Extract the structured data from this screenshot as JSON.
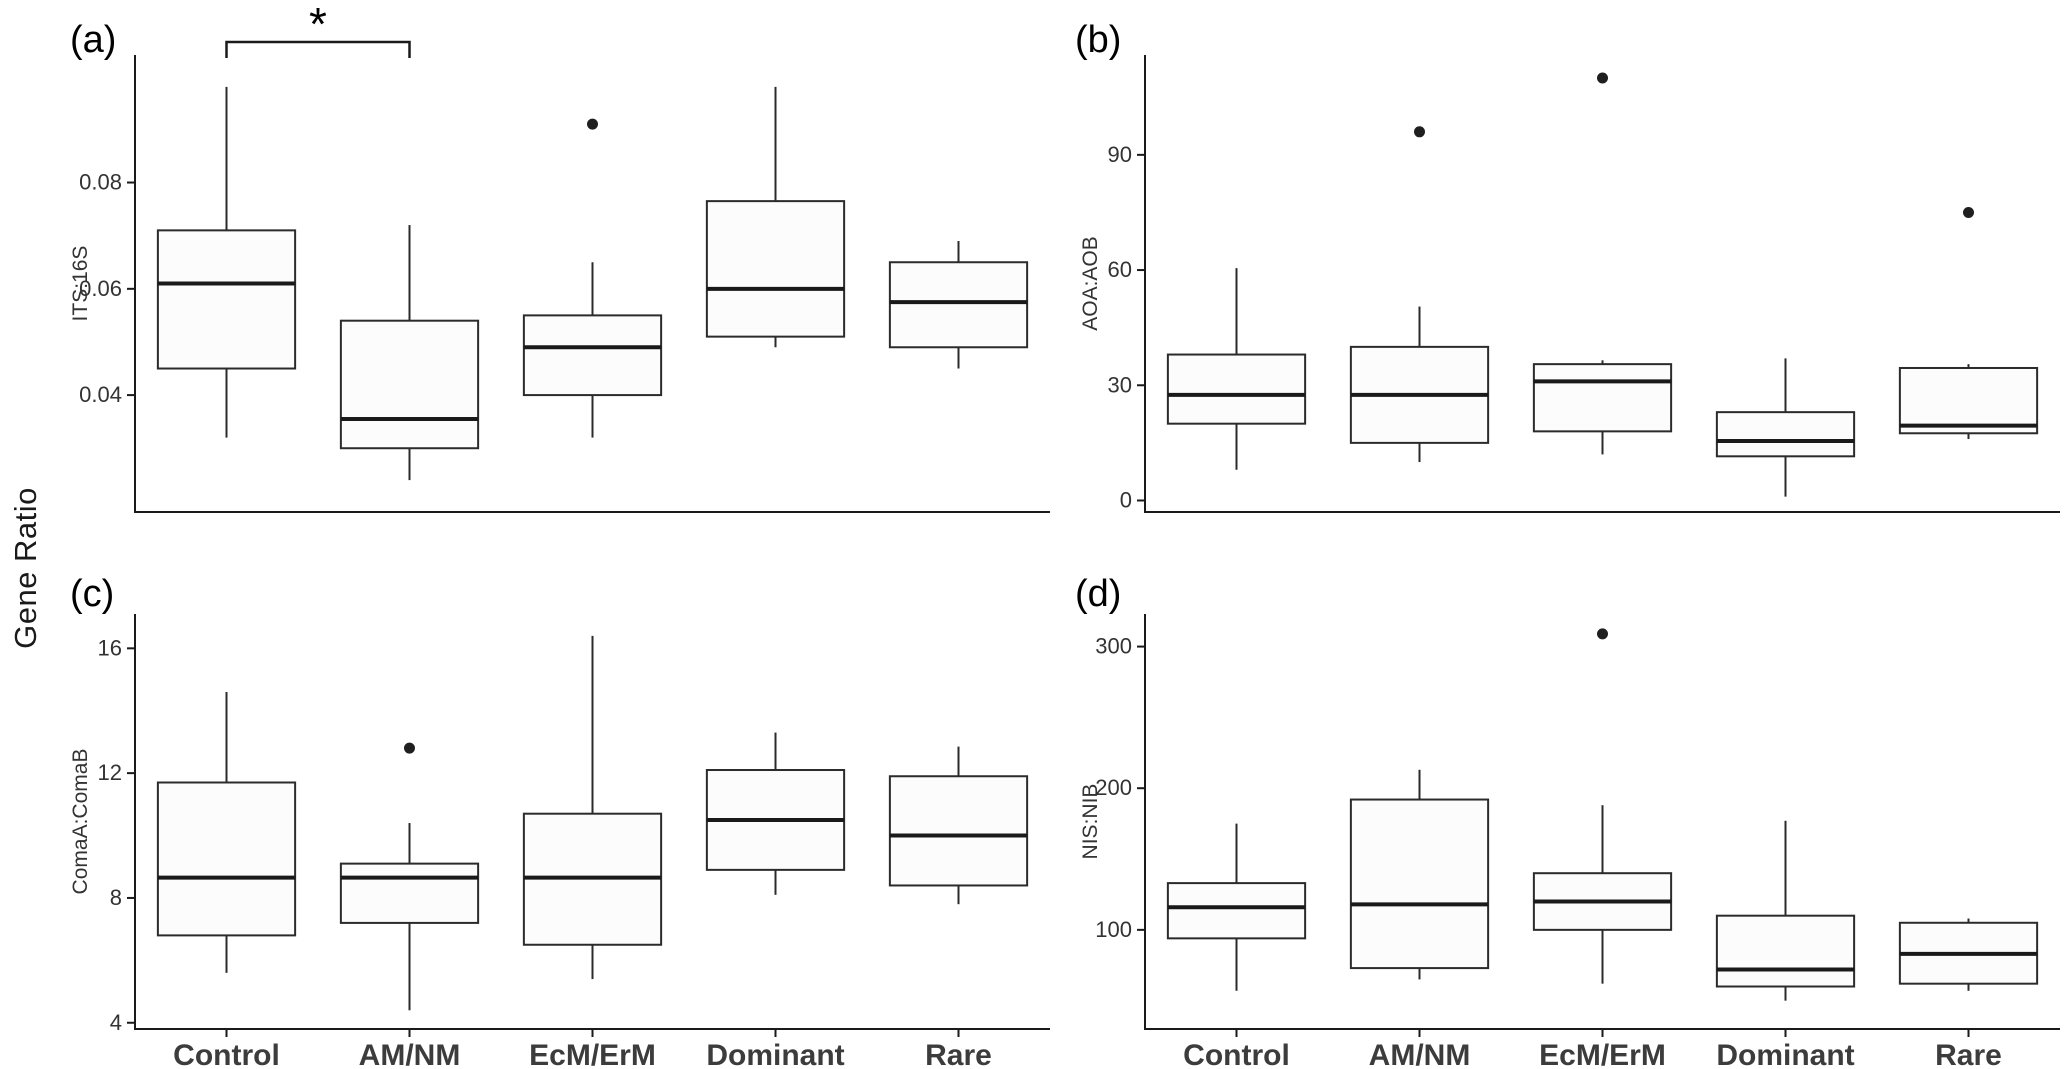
{
  "figure": {
    "shared_ylabel": "Gene Ratio",
    "categories": [
      "Control",
      "AM/NM",
      "EcM/ErM",
      "Dominant",
      "Rare"
    ]
  },
  "style": {
    "background": "#ffffff",
    "axis_color": "#1a1a1a",
    "box_stroke": "#2b2b2b",
    "box_fill": "#fcfcfc",
    "median_color": "#1a1a1a",
    "outlier_color": "#1f1f1f",
    "tick_label_color": "#333333",
    "category_label_color": "#3c3c3c",
    "panel_label_color": "#000000"
  },
  "chart_data": [
    {
      "type": "boxplot",
      "panel_label": "(a)",
      "ylabel": "ITS:16S",
      "ylim": [
        0.018,
        0.104
      ],
      "yticks": [
        0.04,
        0.06,
        0.08
      ],
      "ytick_labels": [
        "0.04",
        "0.06",
        "0.08"
      ],
      "grid": false,
      "categories": [
        "Control",
        "AM/NM",
        "EcM/ErM",
        "Dominant",
        "Rare"
      ],
      "boxes": [
        {
          "category": "Control",
          "low": 0.032,
          "q1": 0.045,
          "median": 0.061,
          "q3": 0.071,
          "high": 0.098,
          "outliers": []
        },
        {
          "category": "AM/NM",
          "low": 0.024,
          "q1": 0.03,
          "median": 0.0355,
          "q3": 0.054,
          "high": 0.072,
          "outliers": []
        },
        {
          "category": "EcM/ErM",
          "low": 0.032,
          "q1": 0.04,
          "median": 0.049,
          "q3": 0.055,
          "high": 0.065,
          "outliers": [
            0.091
          ]
        },
        {
          "category": "Dominant",
          "low": 0.049,
          "q1": 0.051,
          "median": 0.06,
          "q3": 0.0765,
          "high": 0.098,
          "outliers": []
        },
        {
          "category": "Rare",
          "low": 0.045,
          "q1": 0.049,
          "median": 0.0575,
          "q3": 0.065,
          "high": 0.069,
          "outliers": []
        }
      ],
      "annotation": {
        "type": "significance-bracket",
        "from_index": 0,
        "to_index": 1,
        "label": "*"
      }
    },
    {
      "type": "boxplot",
      "panel_label": "(b)",
      "ylabel": "AOA:AOB",
      "ylim": [
        -3,
        116
      ],
      "yticks": [
        0,
        30,
        60,
        90
      ],
      "ytick_labels": [
        "0",
        "30",
        "60",
        "90"
      ],
      "grid": false,
      "categories": [
        "Control",
        "AM/NM",
        "EcM/ErM",
        "Dominant",
        "Rare"
      ],
      "boxes": [
        {
          "category": "Control",
          "low": 8,
          "q1": 20,
          "median": 27.5,
          "q3": 38,
          "high": 60.5,
          "outliers": []
        },
        {
          "category": "AM/NM",
          "low": 10,
          "q1": 15,
          "median": 27.5,
          "q3": 40,
          "high": 50.5,
          "outliers": [
            96
          ]
        },
        {
          "category": "EcM/ErM",
          "low": 12,
          "q1": 18,
          "median": 31,
          "q3": 35.5,
          "high": 36.5,
          "outliers": [
            110
          ]
        },
        {
          "category": "Dominant",
          "low": 1,
          "q1": 11.5,
          "median": 15.5,
          "q3": 23,
          "high": 37,
          "outliers": []
        },
        {
          "category": "Rare",
          "low": 16,
          "q1": 17.5,
          "median": 19.5,
          "q3": 34.5,
          "high": 35.5,
          "outliers": [
            75
          ]
        }
      ],
      "annotation": null
    },
    {
      "type": "boxplot",
      "panel_label": "(c)",
      "ylabel": "ComaA:ComaB",
      "ylim": [
        3.8,
        17.1
      ],
      "yticks": [
        4,
        8,
        12,
        16
      ],
      "ytick_labels": [
        "4",
        "8",
        "12",
        "16"
      ],
      "grid": false,
      "categories": [
        "Control",
        "AM/NM",
        "EcM/ErM",
        "Dominant",
        "Rare"
      ],
      "boxes": [
        {
          "category": "Control",
          "low": 5.6,
          "q1": 6.8,
          "median": 8.65,
          "q3": 11.7,
          "high": 14.6,
          "outliers": []
        },
        {
          "category": "AM/NM",
          "low": 4.4,
          "q1": 7.2,
          "median": 8.65,
          "q3": 9.1,
          "high": 10.4,
          "outliers": [
            12.8
          ]
        },
        {
          "category": "EcM/ErM",
          "low": 5.4,
          "q1": 6.5,
          "median": 8.65,
          "q3": 10.7,
          "high": 16.4,
          "outliers": []
        },
        {
          "category": "Dominant",
          "low": 8.1,
          "q1": 8.9,
          "median": 10.5,
          "q3": 12.1,
          "high": 13.3,
          "outliers": []
        },
        {
          "category": "Rare",
          "low": 7.8,
          "q1": 8.4,
          "median": 10.0,
          "q3": 11.9,
          "high": 12.85,
          "outliers": []
        }
      ],
      "annotation": null
    },
    {
      "type": "boxplot",
      "panel_label": "(d)",
      "ylabel": "NIS:NIB",
      "ylim": [
        30,
        323
      ],
      "yticks": [
        100,
        200,
        300
      ],
      "ytick_labels": [
        "100",
        "200",
        "300"
      ],
      "grid": false,
      "categories": [
        "Control",
        "AM/NM",
        "EcM/ErM",
        "Dominant",
        "Rare"
      ],
      "boxes": [
        {
          "category": "Control",
          "low": 57,
          "q1": 94,
          "median": 116,
          "q3": 133,
          "high": 175,
          "outliers": []
        },
        {
          "category": "AM/NM",
          "low": 65,
          "q1": 73,
          "median": 118,
          "q3": 192,
          "high": 213,
          "outliers": []
        },
        {
          "category": "EcM/ErM",
          "low": 62,
          "q1": 100,
          "median": 120,
          "q3": 140,
          "high": 188,
          "outliers": [
            309
          ]
        },
        {
          "category": "Dominant",
          "low": 50,
          "q1": 60,
          "median": 72,
          "q3": 110,
          "high": 177,
          "outliers": []
        },
        {
          "category": "Rare",
          "low": 57,
          "q1": 62,
          "median": 83,
          "q3": 105,
          "high": 108,
          "outliers": []
        }
      ],
      "annotation": null
    }
  ]
}
